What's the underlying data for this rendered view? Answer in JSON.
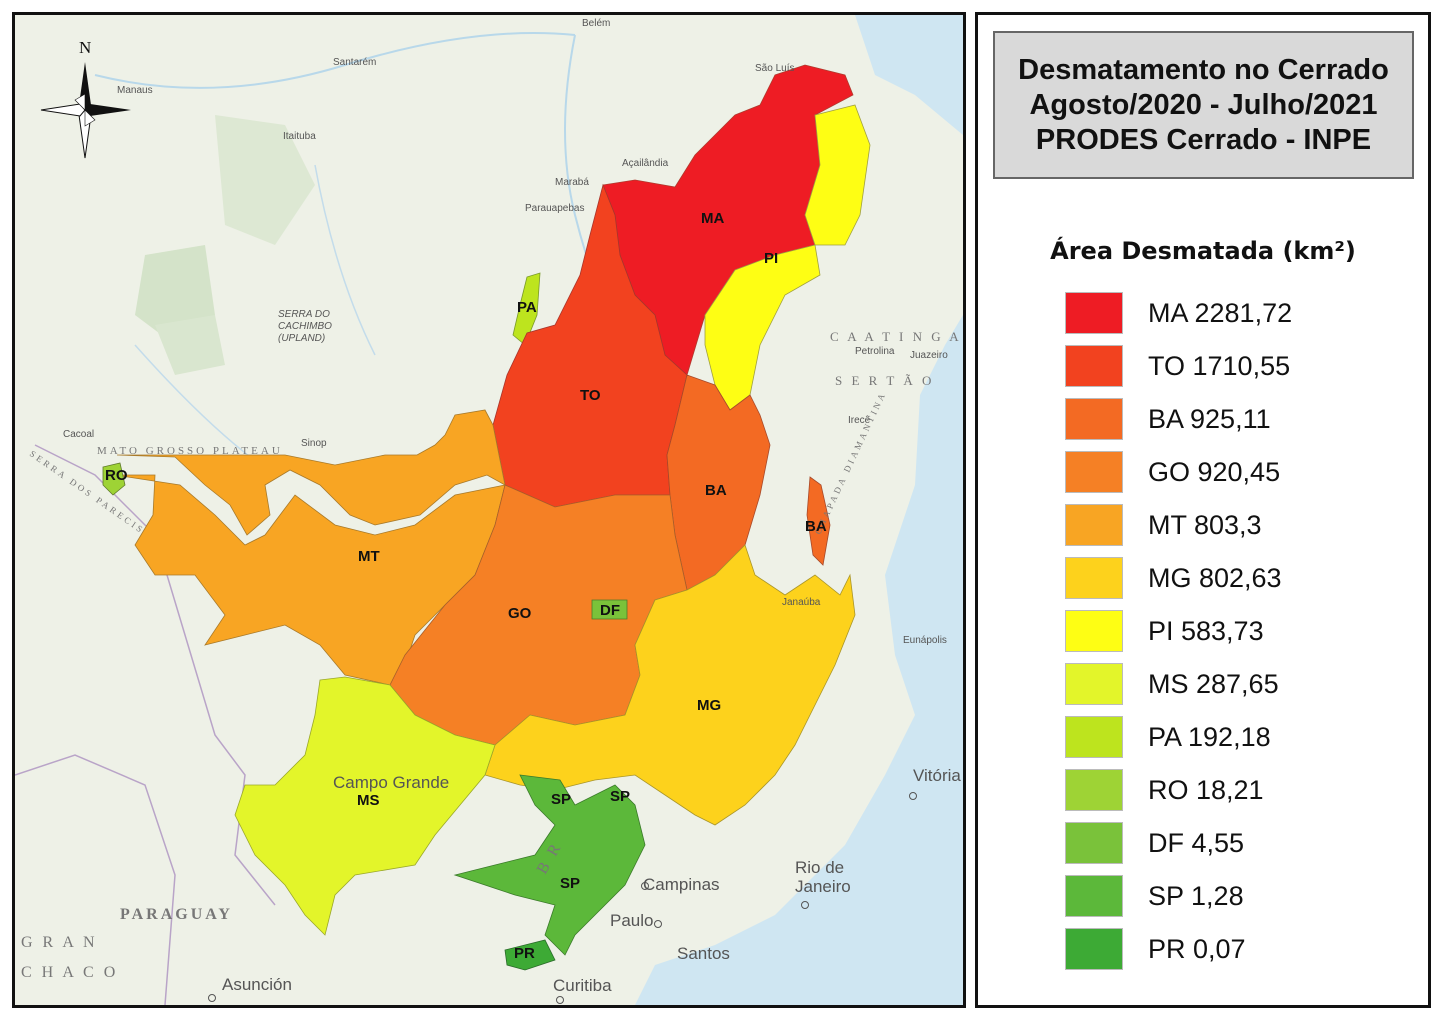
{
  "title": {
    "line1": "Desmatamento no Cerrado",
    "line2": "Agosto/2020 - Julho/2021",
    "line3": "PRODES Cerrado - INPE"
  },
  "legend": {
    "heading": "Área Desmatada (km²)",
    "items": [
      {
        "label": "MA 2281,72",
        "state": "MA",
        "value": 2281.72,
        "color": "#ee1c24"
      },
      {
        "label": "TO 1710,55",
        "state": "TO",
        "value": 1710.55,
        "color": "#f2421f"
      },
      {
        "label": "BA 925,11",
        "state": "BA",
        "value": 925.11,
        "color": "#f36a23"
      },
      {
        "label": "GO 920,45",
        "state": "GO",
        "value": 920.45,
        "color": "#f58025"
      },
      {
        "label": "MT 803,3",
        "state": "MT",
        "value": 803.3,
        "color": "#f8a523"
      },
      {
        "label": "MG 802,63",
        "state": "MG",
        "value": 802.63,
        "color": "#fdd21c"
      },
      {
        "label": "PI 583,73",
        "state": "PI",
        "value": 583.73,
        "color": "#fefe14"
      },
      {
        "label": "MS 287,65",
        "state": "MS",
        "value": 287.65,
        "color": "#e3f52a"
      },
      {
        "label": "PA 192,18",
        "state": "PA",
        "value": 192.18,
        "color": "#bde41e"
      },
      {
        "label": "RO 18,21",
        "state": "RO",
        "value": 18.21,
        "color": "#9ed335"
      },
      {
        "label": "DF 4,55",
        "state": "DF",
        "value": 4.55,
        "color": "#7ac23a"
      },
      {
        "label": "SP 1,28",
        "state": "SP",
        "value": 1.28,
        "color": "#5cb83a"
      },
      {
        "label": "PR 0,07",
        "state": "PR",
        "value": 0.07,
        "color": "#3daa35"
      }
    ]
  },
  "map": {
    "north_label": "N",
    "state_labels": {
      "MA": "MA",
      "PI": "PI",
      "PA": "PA",
      "TO": "TO",
      "BA": "BA",
      "BA2": "BA",
      "MT": "MT",
      "GO": "GO",
      "DF": "DF",
      "MG": "MG",
      "MS": "MS",
      "RO": "RO",
      "SP1": "SP",
      "SP2": "SP",
      "SP3": "SP",
      "PR": "PR"
    },
    "places": {
      "belem": "Belém",
      "sao_luis": "São Luís",
      "manaus": "Manaus",
      "santarem": "Santarém",
      "itaituba": "Itaituba",
      "maraba": "Marabá",
      "acailandia": "Açailândia",
      "parauapebas": "Parauapebas",
      "cacoal": "Cacoal",
      "sinop": "Sinop",
      "petrolina": "Petrolina",
      "juazeiro": "Juazeiro",
      "irece": "Irecê",
      "janauba": "Janaúba",
      "eunapolis": "Eunápolis",
      "campo_grande": "Campo Grande",
      "vitoria": "Vitória",
      "rio": "Rio de",
      "janeiro": "Janeiro",
      "campinas": "Campinas",
      "sao_paulo": "Paulo",
      "santos": "Santos",
      "curitiba": "Curitiba",
      "asuncion": "Asunción",
      "paraguay": "PARAGUAY",
      "gran": "G R A N",
      "chaco": "C H A C O",
      "caatinga": "C A A T I N G A",
      "sertao": "S E R T Ã O",
      "mato_grosso_plateau": "MATO GROSSO PLATEAU",
      "serra_dos_pareeis": "SERRA DOS PARECIS",
      "chapada": "CHAPADA DIAMANTINA",
      "serra_cachimbo": "SERRA DO",
      "cachimbo": "CACHIMBO",
      "upland": "(UPLAND)",
      "br": "B R"
    }
  }
}
